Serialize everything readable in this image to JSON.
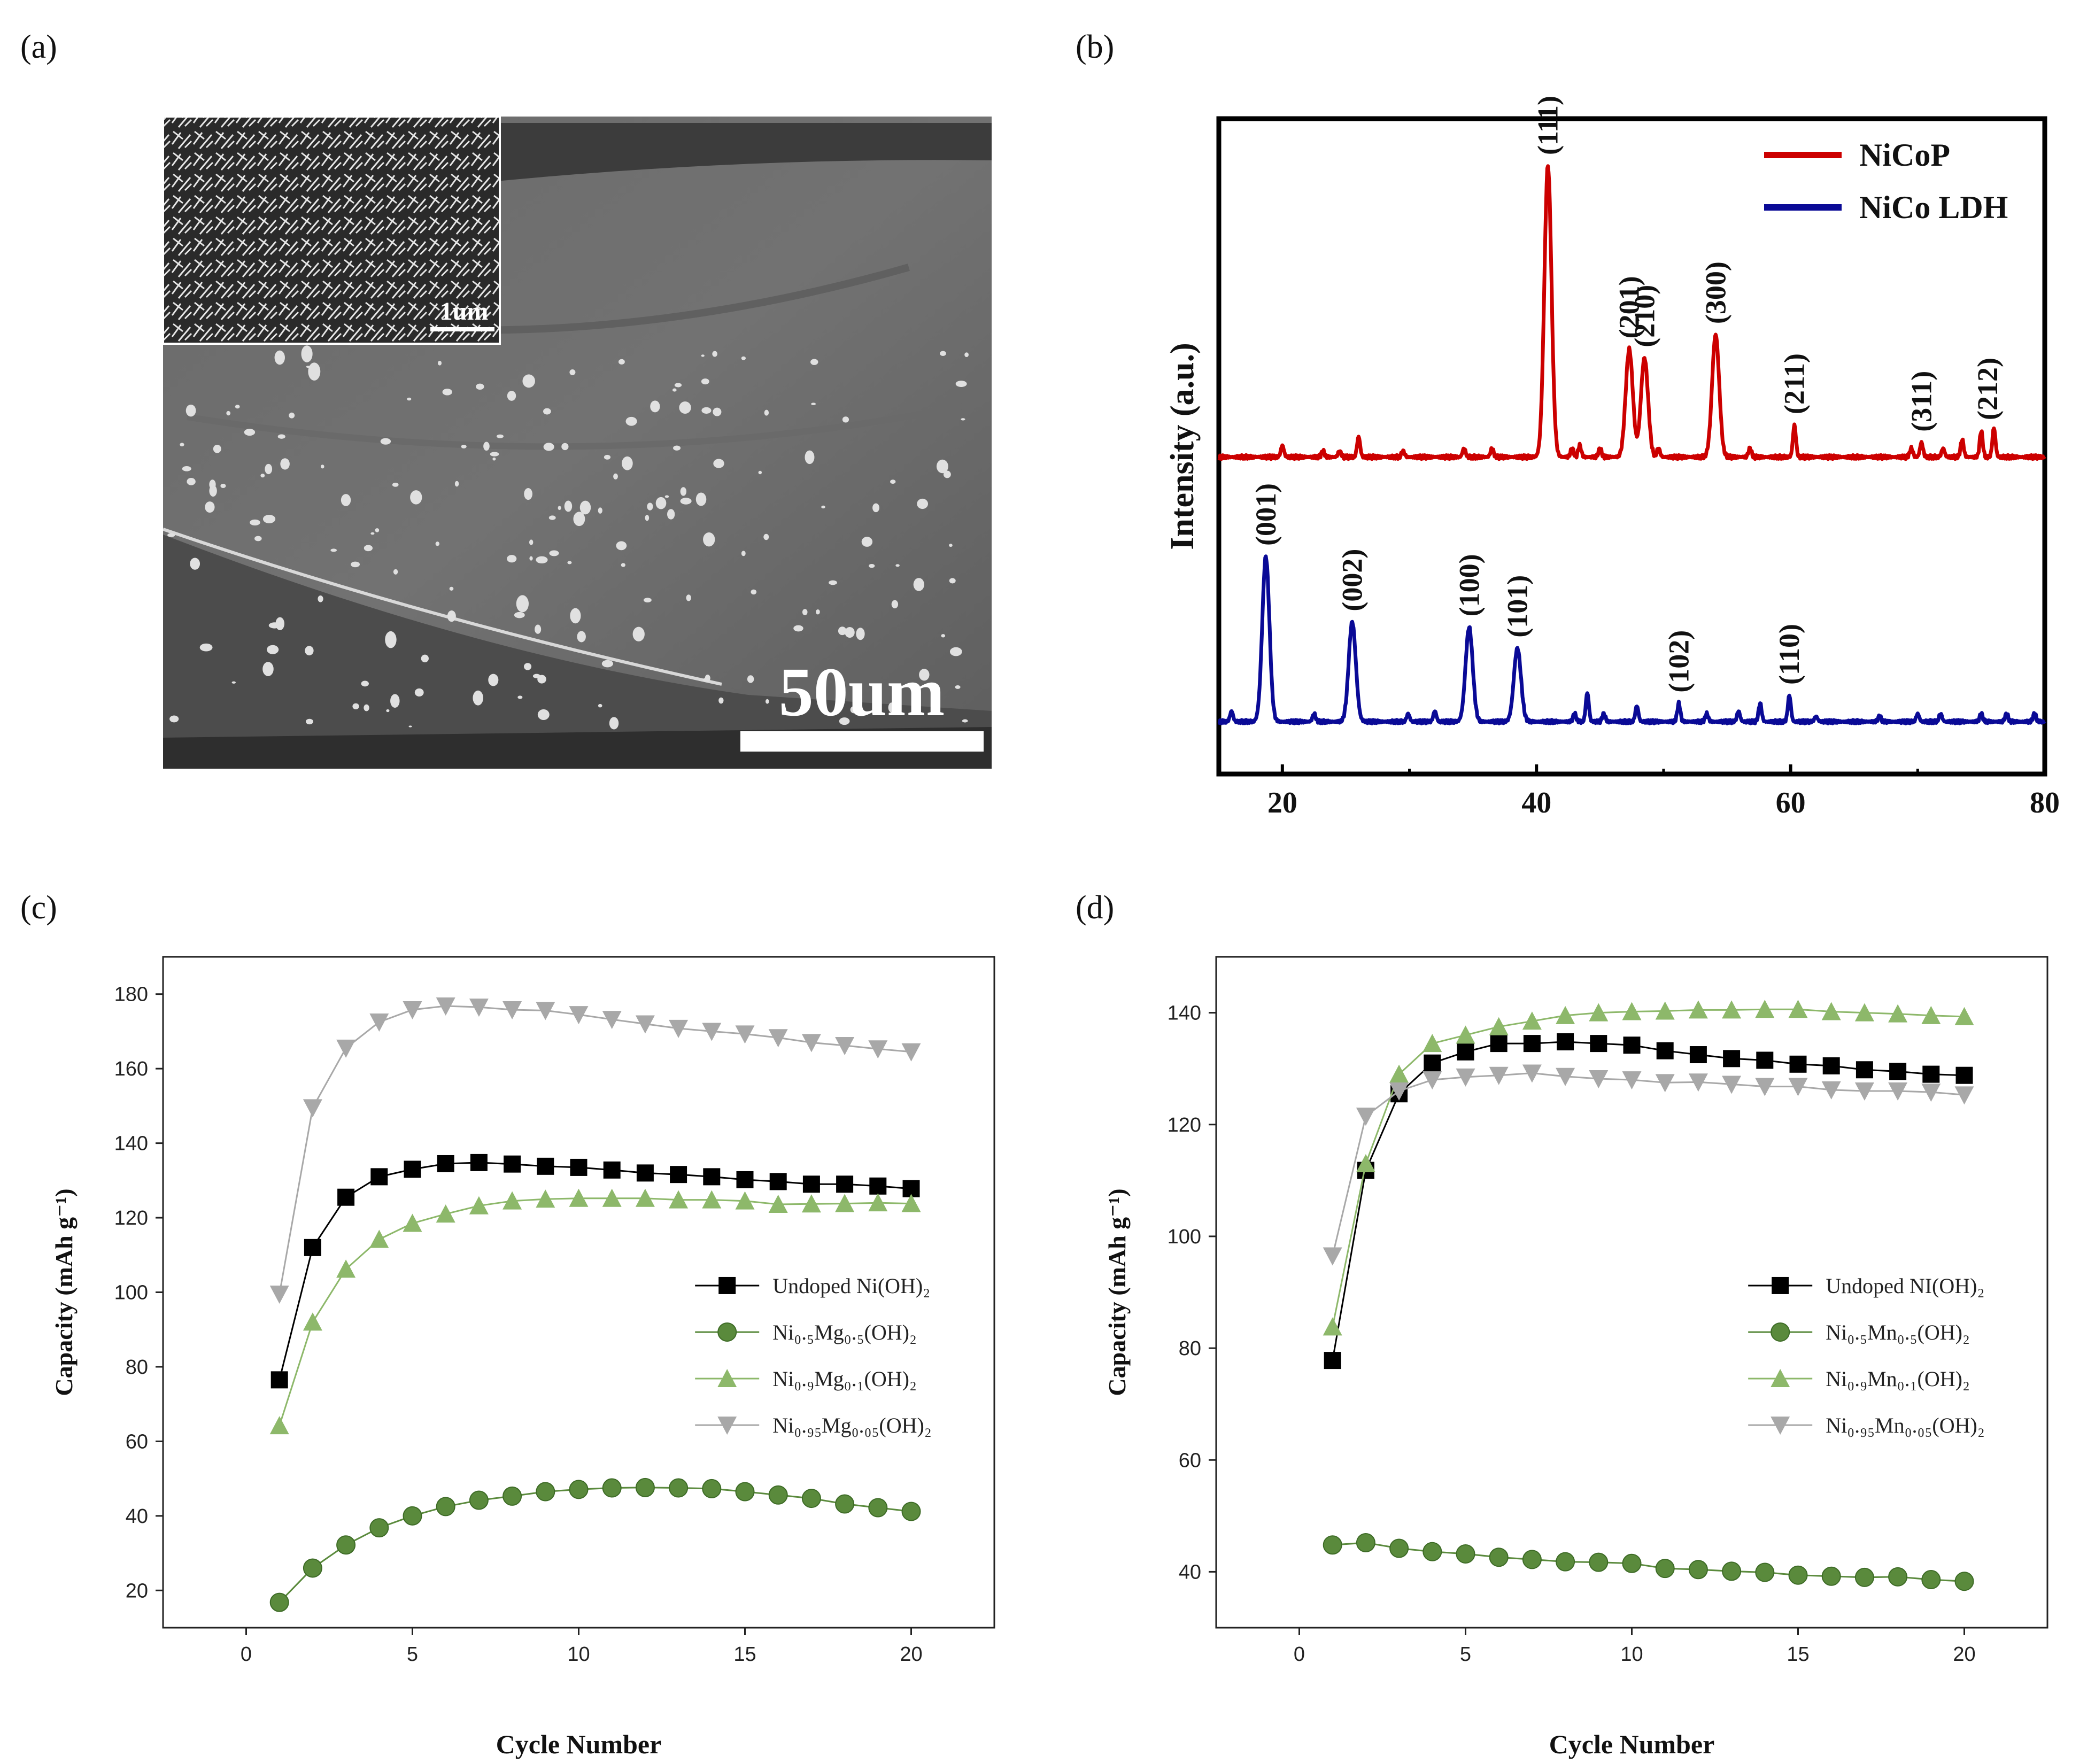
{
  "panels": {
    "a": {
      "label": "(a)",
      "scale_bar": "50um",
      "inset_scale_bar": "1um"
    },
    "b": {
      "label": "(b)"
    },
    "c": {
      "label": "(c)"
    },
    "d": {
      "label": "(d)"
    }
  },
  "colors": {
    "red": "#cc0000",
    "blue": "#0a0a96",
    "black": "#000000",
    "dark_green": "#5a8a3c",
    "light_green": "#8db86a",
    "gray": "#a8a8a8"
  },
  "chart_data": [
    {
      "id": "b",
      "type": "line",
      "title": "",
      "xlabel": "",
      "ylabel": "Intensity (a.u.)",
      "xlim": [
        15,
        80
      ],
      "xticks": [
        20,
        40,
        60,
        80
      ],
      "legend_position": "top-right",
      "series": [
        {
          "name": "NiCoP",
          "color": "#cc0000",
          "baseline": 0.58,
          "peaks": [
            [
              20.0,
              0.04
            ],
            [
              23.2,
              0.02
            ],
            [
              24.5,
              0.02
            ],
            [
              26.0,
              0.07
            ],
            [
              29.5,
              0.02
            ],
            [
              34.3,
              0.03
            ],
            [
              36.5,
              0.03
            ],
            [
              40.9,
              1.0
            ],
            [
              42.8,
              0.03
            ],
            [
              43.4,
              0.04
            ],
            [
              45.0,
              0.03
            ],
            [
              47.3,
              0.37
            ],
            [
              48.5,
              0.34
            ],
            [
              49.6,
              0.03
            ],
            [
              54.1,
              0.42
            ],
            [
              56.8,
              0.03
            ],
            [
              60.3,
              0.11
            ],
            [
              69.5,
              0.03
            ],
            [
              70.3,
              0.05
            ],
            [
              72.0,
              0.03
            ],
            [
              73.5,
              0.06
            ],
            [
              75.0,
              0.09
            ],
            [
              76.0,
              0.1
            ]
          ],
          "peak_labels": [
            {
              "x": 40.9,
              "text": "(111)"
            },
            {
              "x": 47.3,
              "text": "(201)"
            },
            {
              "x": 48.5,
              "text": "(210)"
            },
            {
              "x": 54.1,
              "text": "(300)"
            },
            {
              "x": 60.3,
              "text": "(211)"
            },
            {
              "x": 70.3,
              "text": "(311)"
            },
            {
              "x": 75.5,
              "text": "(212)"
            }
          ]
        },
        {
          "name": "NiCo LDH",
          "color": "#0a0a96",
          "baseline": 0.0,
          "peaks": [
            [
              16.0,
              0.04
            ],
            [
              18.7,
              0.63
            ],
            [
              22.5,
              0.03
            ],
            [
              25.5,
              0.38
            ],
            [
              29.9,
              0.03
            ],
            [
              32.0,
              0.04
            ],
            [
              34.7,
              0.36
            ],
            [
              38.5,
              0.28
            ],
            [
              43.0,
              0.03
            ],
            [
              44.0,
              0.11
            ],
            [
              45.3,
              0.03
            ],
            [
              47.9,
              0.06
            ],
            [
              51.2,
              0.07
            ],
            [
              53.4,
              0.03
            ],
            [
              55.9,
              0.04
            ],
            [
              57.6,
              0.07
            ],
            [
              59.9,
              0.1
            ],
            [
              62.0,
              0.02
            ],
            [
              67.0,
              0.02
            ],
            [
              70.0,
              0.03
            ],
            [
              71.8,
              0.03
            ],
            [
              75.0,
              0.03
            ],
            [
              77.0,
              0.03
            ],
            [
              79.2,
              0.03
            ]
          ],
          "peak_labels": [
            {
              "x": 18.7,
              "text": "(001)"
            },
            {
              "x": 25.5,
              "text": "(002)"
            },
            {
              "x": 34.7,
              "text": "(100)"
            },
            {
              "x": 38.5,
              "text": "(101)"
            },
            {
              "x": 51.2,
              "text": "(102)"
            },
            {
              "x": 59.9,
              "text": "(110)"
            }
          ]
        }
      ]
    },
    {
      "id": "c",
      "type": "line",
      "title": "",
      "xlabel": "Cycle Number",
      "ylabel": "Capacity (mAh g⁻¹)",
      "xlim": [
        -2.5,
        22.5
      ],
      "ylim": [
        10,
        190
      ],
      "xticks": [
        0,
        5,
        10,
        15,
        20
      ],
      "yticks": [
        20,
        40,
        60,
        80,
        100,
        120,
        140,
        160,
        180
      ],
      "legend_position": "center-right",
      "x": [
        1,
        2,
        3,
        4,
        5,
        6,
        7,
        8,
        9,
        10,
        11,
        12,
        13,
        14,
        15,
        16,
        17,
        18,
        19,
        20
      ],
      "series": [
        {
          "name": "Undoped Ni(OH)₂",
          "marker": "square",
          "color": "#000000",
          "values": [
            76.5,
            112,
            125.5,
            131,
            133,
            134.5,
            134.8,
            134.4,
            133.8,
            133.5,
            132.8,
            132,
            131.6,
            131,
            130.2,
            129.7,
            129,
            129,
            128.5,
            127.8
          ]
        },
        {
          "name": "Ni₀.₅Mg₀.₅(OH)₂",
          "marker": "circle",
          "color": "#5a8a3c",
          "values": [
            16.8,
            26,
            32.2,
            36.8,
            40,
            42.5,
            44.2,
            45.3,
            46.5,
            47.1,
            47.5,
            47.6,
            47.5,
            47.3,
            46.5,
            45.6,
            44.7,
            43.2,
            42.2,
            41.2
          ]
        },
        {
          "name": "Ni₀.₉Mg₀.₁(OH)₂",
          "marker": "triangle",
          "color": "#8db86a",
          "values": [
            64.2,
            92,
            106.2,
            114.2,
            118.5,
            121,
            123.2,
            124.5,
            125,
            125.2,
            125.2,
            125.2,
            124.8,
            124.8,
            124.5,
            123.6,
            123.7,
            123.8,
            124,
            123.8
          ]
        },
        {
          "name": "Ni₀.₉₅Mg₀.₀₅(OH)₂",
          "marker": "triangle-down",
          "color": "#a8a8a8",
          "values": [
            99.5,
            149.5,
            165.5,
            172.5,
            175.8,
            176.8,
            176.5,
            175.8,
            175.6,
            174.5,
            173.2,
            172,
            170.8,
            170,
            169.3,
            168.3,
            167,
            166.2,
            165.3,
            164.5
          ]
        }
      ]
    },
    {
      "id": "d",
      "type": "line",
      "title": "",
      "xlabel": "Cycle Number",
      "ylabel": "Capacity (mAh g⁻¹)",
      "xlim": [
        -2.5,
        22.5
      ],
      "ylim": [
        30,
        150
      ],
      "xticks": [
        0,
        5,
        10,
        15,
        20
      ],
      "yticks": [
        40,
        60,
        80,
        100,
        120,
        140
      ],
      "legend_position": "center-right",
      "x": [
        1,
        2,
        3,
        4,
        5,
        6,
        7,
        8,
        9,
        10,
        11,
        12,
        13,
        14,
        15,
        16,
        17,
        18,
        19,
        20
      ],
      "series": [
        {
          "name": "Undoped NI(OH)₂",
          "marker": "square",
          "color": "#000000",
          "values": [
            77.8,
            111.8,
            125.5,
            131,
            133,
            134.5,
            134.5,
            134.8,
            134.5,
            134.2,
            133.2,
            132.5,
            131.8,
            131.5,
            130.8,
            130.5,
            129.8,
            129.5,
            129,
            128.8
          ]
        },
        {
          "name": "Ni₀.₅Mn₀.₅(OH)₂",
          "marker": "circle",
          "color": "#5a8a3c",
          "values": [
            44.8,
            45.2,
            44.2,
            43.6,
            43.2,
            42.6,
            42.2,
            41.8,
            41.7,
            41.5,
            40.6,
            40.4,
            40.1,
            39.9,
            39.4,
            39.2,
            39,
            39.1,
            38.6,
            38.3
          ]
        },
        {
          "name": "Ni₀.₉Mn₀.₁(OH)₂",
          "marker": "triangle",
          "color": "#8db86a",
          "values": [
            83.8,
            113,
            129,
            134.5,
            136,
            137.5,
            138.5,
            139.5,
            140,
            140.2,
            140.3,
            140.5,
            140.5,
            140.6,
            140.6,
            140.2,
            140,
            139.8,
            139.5,
            139.3
          ]
        },
        {
          "name": "Ni₀.₉₅Mn₀.₀₅(OH)₂",
          "marker": "triangle-down",
          "color": "#a8a8a8",
          "values": [
            96.5,
            121.5,
            126,
            128,
            128.5,
            128.8,
            129.2,
            128.6,
            128.2,
            128,
            127.5,
            127.6,
            127.2,
            126.8,
            126.8,
            126.2,
            126,
            126,
            125.8,
            125.3
          ]
        }
      ]
    }
  ]
}
